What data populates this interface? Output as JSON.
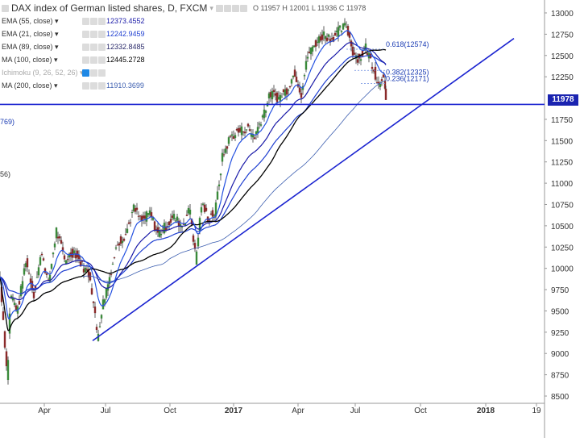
{
  "header": {
    "title": "DAX index of German listed shares, D, FXCM",
    "ohlc": "O 11957 H 12001 L 11936 C 11978"
  },
  "indicators": [
    {
      "name": "EMA (55, close)",
      "value": "12373.4552",
      "color": "#1a1aa8"
    },
    {
      "name": "EMA (21, close)",
      "value": "12242.9459",
      "color": "#1f3fd1"
    },
    {
      "name": "EMA (89, close)",
      "value": "12332.8485",
      "color": "#2a2a6a"
    },
    {
      "name": "MA (100, close)",
      "value": "12445.2728",
      "color": "#000000"
    },
    {
      "name": "Ichimoku (9, 26, 52, 26)",
      "value": "",
      "color": "#aaaaaa"
    },
    {
      "name": "MA (200, close)",
      "value": "11910.3699",
      "color": "#3d5fb0"
    }
  ],
  "edge_labels": [
    "769)",
    "56)"
  ],
  "fib_levels": [
    {
      "label": "0.618(12574)",
      "price": 12574
    },
    {
      "label": "0.382(12325)",
      "price": 12325
    },
    {
      "label": "0.236(12171)",
      "price": 12171
    }
  ],
  "last_price": "11978",
  "chart_data": {
    "type": "candlestick",
    "title": "DAX index of German listed shares, D, FXCM",
    "y_ticks": [
      13000,
      12750,
      12500,
      12250,
      12000,
      11750,
      11500,
      11250,
      11000,
      10750,
      10500,
      10250,
      10000,
      9750,
      9500,
      9250,
      9000,
      8750,
      8500
    ],
    "y_tick_labels": [
      "13000",
      "12750",
      "12500",
      "12250",
      "12000",
      "11750",
      "11500",
      "11250",
      "11000",
      "10750",
      "10500",
      "10250",
      "10000",
      "9750",
      "9500",
      "9250",
      "9000",
      "8750",
      "8500"
    ],
    "ylim": [
      8450,
      13060
    ],
    "x_ticks": [
      "Apr",
      "Jul",
      "Oct",
      "2017",
      "Apr",
      "Jul",
      "Oct",
      "2018",
      "19"
    ],
    "bold_x_ticks": [
      "2017",
      "2018"
    ],
    "price_anchors": [
      {
        "t": 0,
        "price": 9900
      },
      {
        "t": 4,
        "price": 9400
      },
      {
        "t": 9,
        "price": 8700
      },
      {
        "t": 13,
        "price": 9700
      },
      {
        "t": 22,
        "price": 9500
      },
      {
        "t": 32,
        "price": 10100
      },
      {
        "t": 42,
        "price": 9700
      },
      {
        "t": 52,
        "price": 10200
      },
      {
        "t": 60,
        "price": 9800
      },
      {
        "t": 70,
        "price": 10450
      },
      {
        "t": 80,
        "price": 10100
      },
      {
        "t": 92,
        "price": 10200
      },
      {
        "t": 101,
        "price": 10050
      },
      {
        "t": 112,
        "price": 9900
      },
      {
        "t": 121,
        "price": 9200
      },
      {
        "t": 128,
        "price": 9600
      },
      {
        "t": 136,
        "price": 9900
      },
      {
        "t": 146,
        "price": 10300
      },
      {
        "t": 156,
        "price": 10400
      },
      {
        "t": 166,
        "price": 10700
      },
      {
        "t": 176,
        "price": 10550
      },
      {
        "t": 186,
        "price": 10650
      },
      {
        "t": 196,
        "price": 10400
      },
      {
        "t": 206,
        "price": 10500
      },
      {
        "t": 216,
        "price": 10600
      },
      {
        "t": 226,
        "price": 10500
      },
      {
        "t": 236,
        "price": 10700
      },
      {
        "t": 243,
        "price": 10100
      },
      {
        "t": 250,
        "price": 10750
      },
      {
        "t": 258,
        "price": 10600
      },
      {
        "t": 267,
        "price": 10650
      },
      {
        "t": 276,
        "price": 11300
      },
      {
        "t": 286,
        "price": 11550
      },
      {
        "t": 296,
        "price": 11600
      },
      {
        "t": 306,
        "price": 11650
      },
      {
        "t": 316,
        "price": 11550
      },
      {
        "t": 326,
        "price": 11800
      },
      {
        "t": 336,
        "price": 12050
      },
      {
        "t": 346,
        "price": 12000
      },
      {
        "t": 356,
        "price": 12100
      },
      {
        "t": 366,
        "price": 12300
      },
      {
        "t": 374,
        "price": 12050
      },
      {
        "t": 382,
        "price": 12500
      },
      {
        "t": 392,
        "price": 12650
      },
      {
        "t": 402,
        "price": 12750
      },
      {
        "t": 412,
        "price": 12700
      },
      {
        "t": 422,
        "price": 12800
      },
      {
        "t": 430,
        "price": 12850
      },
      {
        "t": 438,
        "price": 12550
      },
      {
        "t": 446,
        "price": 12450
      },
      {
        "t": 454,
        "price": 12600
      },
      {
        "t": 462,
        "price": 12400
      },
      {
        "t": 470,
        "price": 12150
      },
      {
        "t": 476,
        "price": 12300
      },
      {
        "t": 479,
        "price": 11978
      }
    ],
    "support_line": {
      "from": {
        "t": 115,
        "price": 9150
      },
      "to": {
        "t": 638,
        "price": 12700
      }
    },
    "horizontal_line": {
      "price": 11925
    },
    "fib_lines": [
      {
        "from_t": 430,
        "to_t": 478,
        "price": 12574
      },
      {
        "from_t": 440,
        "to_t": 478,
        "price": 12325
      },
      {
        "from_t": 448,
        "to_t": 478,
        "price": 12171
      }
    ]
  }
}
